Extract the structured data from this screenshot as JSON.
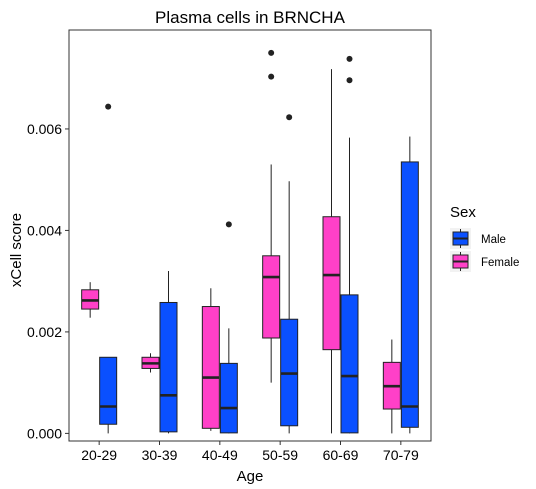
{
  "chart_data": {
    "type": "box",
    "title": "Plasma cells in BRNCHA",
    "xlabel": "Age",
    "ylabel": "xCell score",
    "categories": [
      "20-29",
      "30-39",
      "40-49",
      "50-59",
      "60-69",
      "70-79"
    ],
    "yticks": [
      0.0,
      0.002,
      0.004,
      0.006
    ],
    "ytick_labels": [
      "0.000",
      "0.002",
      "0.004",
      "0.006"
    ],
    "ylim": [
      -0.00015,
      0.00795
    ],
    "grid": false,
    "legend": {
      "title": "Sex",
      "position": "right"
    },
    "series": [
      {
        "name": "Female",
        "color": "#ff40c8",
        "boxes": [
          {
            "category": "20-29",
            "min": 0.00228,
            "q1": 0.00245,
            "median": 0.00262,
            "q3": 0.00283,
            "max": 0.00298,
            "outliers": []
          },
          {
            "category": "30-39",
            "min": 0.0012,
            "q1": 0.00128,
            "median": 0.00138,
            "q3": 0.0015,
            "max": 0.00158,
            "outliers": []
          },
          {
            "category": "40-49",
            "min": 5e-05,
            "q1": 0.0001,
            "median": 0.0011,
            "q3": 0.0025,
            "max": 0.00286,
            "outliers": []
          },
          {
            "category": "50-59",
            "min": 0.001,
            "q1": 0.00188,
            "median": 0.00308,
            "q3": 0.0035,
            "max": 0.0053,
            "outliers": [
              0.00703,
              0.0075
            ]
          },
          {
            "category": "60-69",
            "min": 0.0,
            "q1": 0.00165,
            "median": 0.00312,
            "q3": 0.00427,
            "max": 0.00718,
            "outliers": []
          },
          {
            "category": "70-79",
            "min": 0.0,
            "q1": 0.00048,
            "median": 0.00093,
            "q3": 0.0014,
            "max": 0.00185,
            "outliers": []
          }
        ]
      },
      {
        "name": "Male",
        "color": "#0a50ff",
        "boxes": [
          {
            "category": "20-29",
            "min": 0.0,
            "q1": 0.00018,
            "median": 0.00053,
            "q3": 0.0015,
            "max": 0.0015,
            "outliers": [
              0.00644
            ]
          },
          {
            "category": "30-39",
            "min": 0.0,
            "q1": 3e-05,
            "median": 0.00075,
            "q3": 0.00258,
            "max": 0.0032,
            "outliers": []
          },
          {
            "category": "40-49",
            "min": 0.0,
            "q1": 1e-05,
            "median": 0.0005,
            "q3": 0.00138,
            "max": 0.00207,
            "outliers": [
              0.00412
            ]
          },
          {
            "category": "50-59",
            "min": 0.0,
            "q1": 0.00015,
            "median": 0.00118,
            "q3": 0.00225,
            "max": 0.00497,
            "outliers": [
              0.00623
            ]
          },
          {
            "category": "60-69",
            "min": 0.0,
            "q1": 1e-05,
            "median": 0.00113,
            "q3": 0.00273,
            "max": 0.00583,
            "outliers": [
              0.00696,
              0.00738
            ]
          },
          {
            "category": "70-79",
            "min": 0.0,
            "q1": 0.00012,
            "median": 0.00053,
            "q3": 0.00535,
            "max": 0.00585,
            "outliers": []
          }
        ]
      }
    ]
  }
}
